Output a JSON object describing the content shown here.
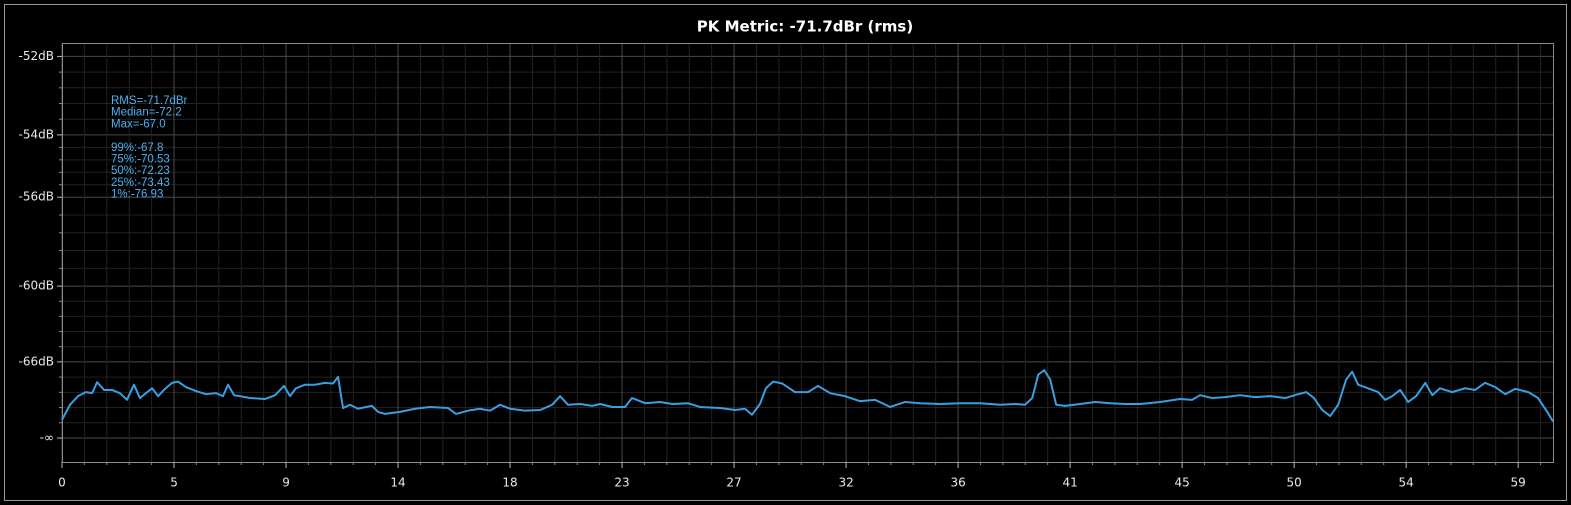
{
  "chart_data": {
    "type": "line",
    "title": "PK Metric: -71.7dBr (rms)",
    "annotations": [
      "RMS=-71.7dBr",
      "Median=-72.2",
      "Max=-67.0",
      "99%:-67.8",
      "75%:-70.53",
      "50%:-72.23",
      "25%:-73.43",
      "1%:-76.93"
    ],
    "y_scale": "amplitude",
    "grid": true,
    "color": "#3a9fe0",
    "xlim": [
      0,
      59.9
    ],
    "xticks": [
      0,
      {
        "value": 4.5,
        "label": "5"
      },
      9,
      {
        "value": 13.5,
        "label": "14"
      },
      18,
      {
        "value": 22.5,
        "label": "23"
      },
      27,
      {
        "value": 31.5,
        "label": "32"
      },
      36,
      {
        "value": 40.5,
        "label": "41"
      },
      45,
      {
        "value": 49.5,
        "label": "50"
      },
      54,
      {
        "value": 58.5,
        "label": "59"
      }
    ],
    "ylim": [
      null,
      -51.7
    ],
    "yticks": [
      {
        "value": -52,
        "label": "-52dB"
      },
      {
        "value": -54,
        "label": "-54dB"
      },
      {
        "value": -56,
        "label": "-56dB"
      },
      {
        "value": -60,
        "label": "-60dB"
      },
      {
        "value": -66,
        "label": "-66dB"
      },
      {
        "value": null,
        "label": "-∞"
      }
    ],
    "x": [
      0,
      0.32,
      0.64,
      0.96,
      1.21,
      1.41,
      1.69,
      2.01,
      2.33,
      2.61,
      2.89,
      3.13,
      3.37,
      3.62,
      3.86,
      4.14,
      4.42,
      4.66,
      4.98,
      5.38,
      5.79,
      6.19,
      6.47,
      6.67,
      6.91,
      7.56,
      8.16,
      8.56,
      8.92,
      9.16,
      9.4,
      9.76,
      10.16,
      10.56,
      10.89,
      11.09,
      11.29,
      11.57,
      11.89,
      12.21,
      12.45,
      12.7,
      12.98,
      13.58,
      14.18,
      14.78,
      15.51,
      15.83,
      16.31,
      16.79,
      17.2,
      17.6,
      18.0,
      18.6,
      19.21,
      19.69,
      20.01,
      20.33,
      20.82,
      21.3,
      21.62,
      22.1,
      22.62,
      22.9,
      23.43,
      24.03,
      24.51,
      25.15,
      25.63,
      26.44,
      27.04,
      27.44,
      27.72,
      28.04,
      28.28,
      28.57,
      28.93,
      29.45,
      29.97,
      30.37,
      30.86,
      31.46,
      32.06,
      32.67,
      33.27,
      33.87,
      34.47,
      35.28,
      36.08,
      36.89,
      37.69,
      38.29,
      38.69,
      38.98,
      39.22,
      39.46,
      39.7,
      39.94,
      40.3,
      40.9,
      41.51,
      42.11,
      42.71,
      43.31,
      44.12,
      44.92,
      45.4,
      45.72,
      46.21,
      46.73,
      47.33,
      47.94,
      48.54,
      49.14,
      49.66,
      49.99,
      50.3,
      50.63,
      50.95,
      51.27,
      51.59,
      51.83,
      52.07,
      52.47,
      52.87,
      53.16,
      53.44,
      53.76,
      54.08,
      54.4,
      54.77,
      55.05,
      55.36,
      55.85,
      56.37,
      56.77,
      57.17,
      57.58,
      57.98,
      58.38,
      58.91,
      59.3,
      59.67,
      59.9
    ],
    "values": [
      -78.5,
      -73.2,
      -71.2,
      -70.4,
      -70.6,
      -68.7,
      -70.0,
      -70.0,
      -70.6,
      -72.0,
      -69.1,
      -71.6,
      -70.6,
      -69.7,
      -71.2,
      -69.8,
      -68.8,
      -68.6,
      -69.5,
      -70.2,
      -70.8,
      -70.6,
      -71.2,
      -69.1,
      -71.0,
      -71.6,
      -71.8,
      -71.0,
      -69.3,
      -71.2,
      -69.7,
      -69.1,
      -69.1,
      -68.8,
      -68.9,
      -67.9,
      -74.1,
      -73.2,
      -74.3,
      -73.8,
      -73.5,
      -75.3,
      -76.0,
      -75.3,
      -74.3,
      -73.8,
      -74.1,
      -76.0,
      -74.9,
      -74.3,
      -74.9,
      -73.2,
      -74.3,
      -74.9,
      -74.7,
      -73.2,
      -71.2,
      -73.2,
      -73.0,
      -73.5,
      -73.0,
      -73.8,
      -73.8,
      -71.6,
      -72.8,
      -72.5,
      -73.0,
      -72.8,
      -73.8,
      -74.1,
      -74.7,
      -74.3,
      -76.3,
      -73.0,
      -69.7,
      -68.6,
      -68.9,
      -70.4,
      -70.4,
      -69.3,
      -70.6,
      -71.2,
      -72.3,
      -72.0,
      -73.8,
      -72.5,
      -72.8,
      -73.0,
      -72.8,
      -72.8,
      -73.2,
      -73.0,
      -73.2,
      -71.6,
      -67.6,
      -67.0,
      -68.3,
      -73.2,
      -73.5,
      -73.0,
      -72.5,
      -72.8,
      -73.0,
      -73.0,
      -72.5,
      -71.8,
      -72.0,
      -71.0,
      -71.6,
      -71.4,
      -71.0,
      -71.4,
      -71.2,
      -71.6,
      -70.8,
      -70.4,
      -71.6,
      -74.7,
      -76.8,
      -73.2,
      -68.3,
      -67.2,
      -69.1,
      -69.7,
      -70.4,
      -72.0,
      -71.2,
      -70.0,
      -72.5,
      -71.2,
      -68.8,
      -71.0,
      -69.7,
      -70.4,
      -69.7,
      -70.0,
      -68.8,
      -69.5,
      -70.8,
      -69.8,
      -70.4,
      -71.6,
      -75.3,
      -79.3
    ]
  }
}
